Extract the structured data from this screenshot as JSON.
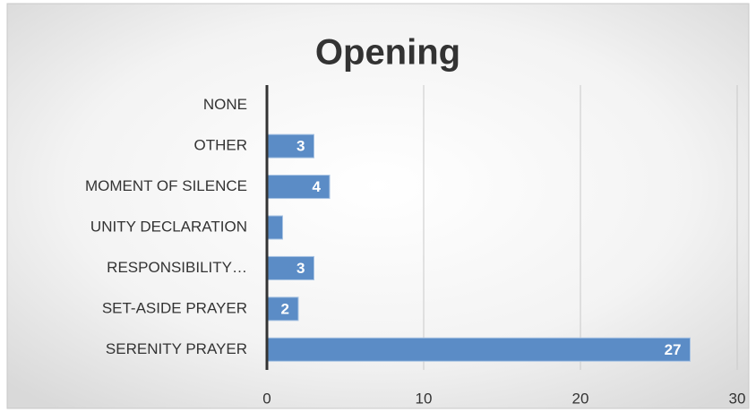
{
  "chart_data": {
    "type": "barh",
    "title": "Opening",
    "categories": [
      "NONE",
      "OTHER",
      "MOMENT OF SILENCE",
      "UNITY DECLARATION",
      "RESPONSIBILITY…",
      "SET-ASIDE PRAYER",
      "SERENITY PRAYER"
    ],
    "values": [
      0,
      3,
      4,
      1,
      3,
      2,
      27
    ],
    "color": "#5b8cc6",
    "xlim": [
      0,
      30
    ],
    "xticks": [
      0,
      10,
      20,
      30
    ],
    "grid": true
  }
}
